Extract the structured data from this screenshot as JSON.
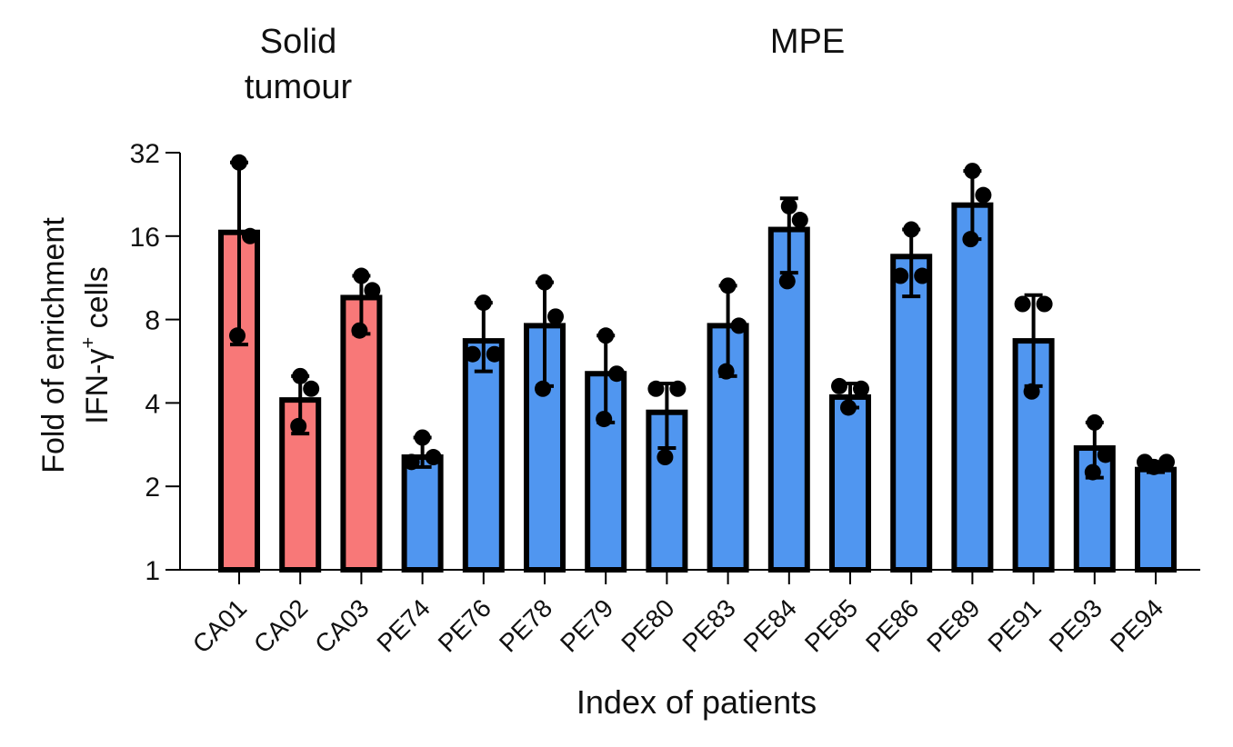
{
  "chart_data": {
    "type": "bar",
    "yscale": "log2",
    "ylim": [
      1,
      32
    ],
    "yticks": [
      1,
      2,
      4,
      8,
      16,
      32
    ],
    "ylabel_lines": [
      "Fold of enrichment",
      "IFN-γ",
      "+",
      " cells"
    ],
    "xlabel": "Index of patients",
    "group_labels": [
      {
        "lines": [
          "Solid",
          "tumour"
        ],
        "group": "solid"
      },
      {
        "lines": [
          "MPE"
        ],
        "group": "mpe"
      }
    ],
    "colors": {
      "solid": "#f87878",
      "mpe": "#5096f0",
      "outline": "#000000"
    },
    "categories": [
      "CA01",
      "CA02",
      "CA03",
      "PE74",
      "PE76",
      "PE78",
      "PE79",
      "PE80",
      "PE83",
      "PE84",
      "PE85",
      "PE86",
      "PE89",
      "PE91",
      "PE93",
      "PE94"
    ],
    "groups": [
      "solid",
      "solid",
      "solid",
      "mpe",
      "mpe",
      "mpe",
      "mpe",
      "mpe",
      "mpe",
      "mpe",
      "mpe",
      "mpe",
      "mpe",
      "mpe",
      "mpe",
      "mpe"
    ],
    "values": [
      16.5,
      4.1,
      9.6,
      2.55,
      6.7,
      7.6,
      5.1,
      3.7,
      7.6,
      16.9,
      4.2,
      13.5,
      20.7,
      6.7,
      2.75,
      2.3
    ],
    "err_low": [
      6.5,
      3.1,
      7.1,
      2.35,
      5.2,
      4.6,
      3.4,
      2.75,
      5.0,
      11.8,
      3.85,
      9.7,
      15.6,
      4.6,
      2.15,
      2.25
    ],
    "err_high": [
      29.5,
      5.0,
      11.5,
      3.0,
      9.2,
      10.9,
      7.0,
      4.7,
      10.6,
      21.9,
      4.7,
      16.9,
      27.5,
      9.8,
      3.4,
      2.45
    ],
    "points": [
      [
        29.5,
        16,
        7.0
      ],
      [
        5.0,
        4.5,
        3.3
      ],
      [
        11.5,
        10.2,
        7.3
      ],
      [
        3.0,
        2.55,
        2.45
      ],
      [
        9.2,
        6.0,
        6.0
      ],
      [
        10.9,
        8.2,
        4.5
      ],
      [
        7.0,
        5.1,
        3.5
      ],
      [
        4.5,
        4.5,
        2.55
      ],
      [
        10.6,
        7.6,
        5.2
      ],
      [
        20.5,
        18.3,
        11.0
      ],
      [
        4.6,
        4.5,
        3.85
      ],
      [
        16.9,
        11.5,
        11.5
      ],
      [
        27.5,
        22.5,
        15.6
      ],
      [
        9.1,
        9.1,
        4.4
      ],
      [
        3.4,
        2.6,
        2.25
      ],
      [
        2.45,
        2.45,
        2.35
      ]
    ]
  }
}
